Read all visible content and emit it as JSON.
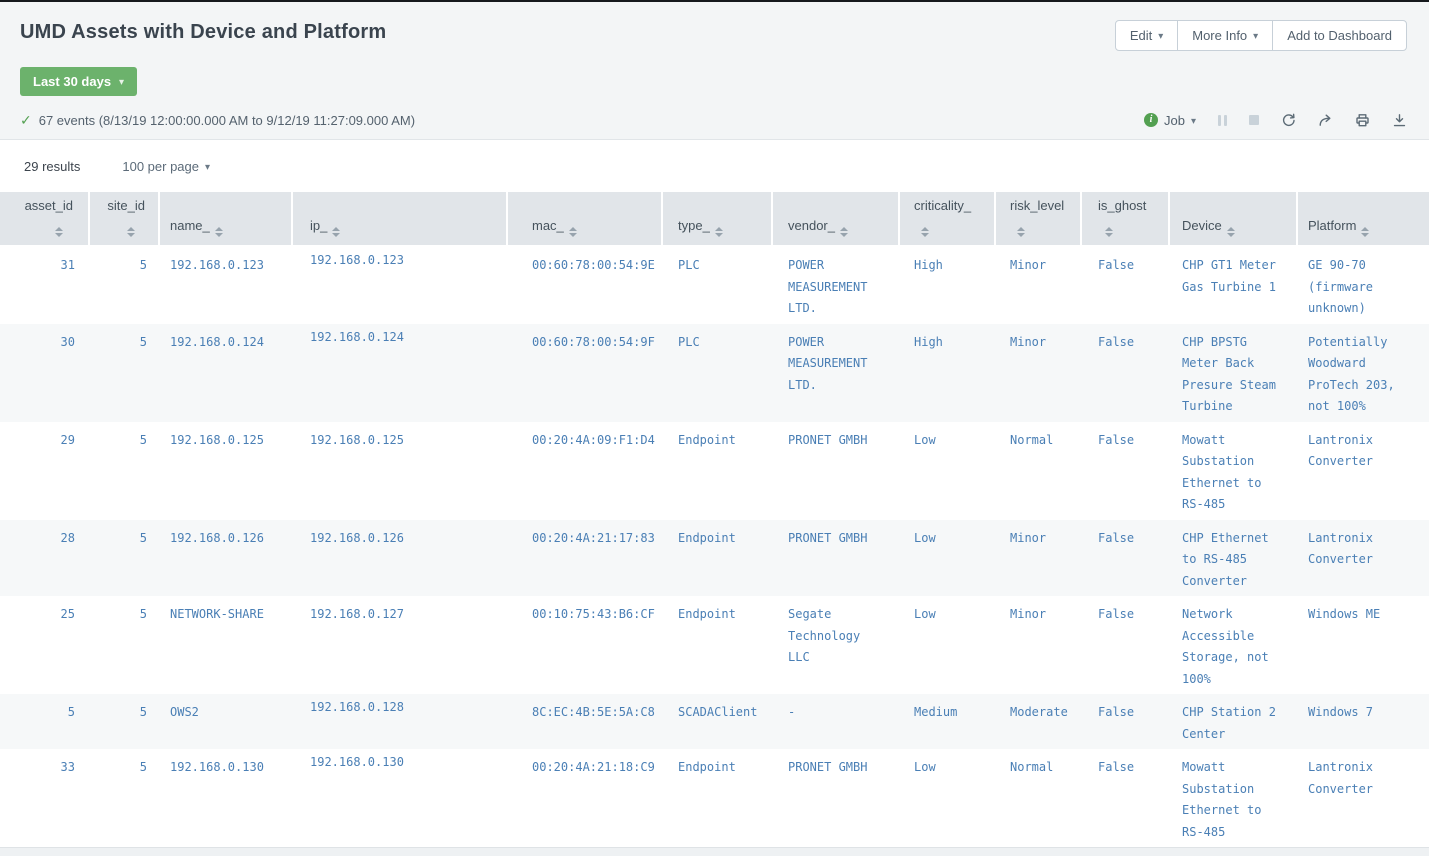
{
  "page": {
    "title": "UMD Assets with Device and Platform",
    "time_range_label": "Last 30 days",
    "events_summary": "67 events (8/13/19 12:00:00.000 AM to 9/12/19 11:27:09.000 AM)",
    "actions": {
      "edit_label": "Edit",
      "more_info_label": "More Info",
      "add_to_dashboard_label": "Add to Dashboard"
    },
    "job": {
      "label": "Job"
    }
  },
  "results_bar": {
    "count": "29 results",
    "per_page": "100 per page"
  },
  "icons": {
    "checkmark": "✓",
    "caret_down": "▾",
    "job_status_dot": "i"
  },
  "colors": {
    "time_button_green": "#6cb26c",
    "status_green": "#53a051",
    "cell_link_blue": "#4a7fb5",
    "header_cell_bg": "#e1e5e9",
    "band_bg": "#f3f5f6",
    "zebra_row_bg": "#f6f8f9"
  },
  "table": {
    "columns": [
      {
        "id": "asset_id",
        "label": "asset_id"
      },
      {
        "id": "site_id",
        "label": "site_id"
      },
      {
        "id": "name_",
        "label": "name_"
      },
      {
        "id": "ip_",
        "label": "ip_"
      },
      {
        "id": "mac_",
        "label": "mac_"
      },
      {
        "id": "type_",
        "label": "type_"
      },
      {
        "id": "vendor_",
        "label": "vendor_"
      },
      {
        "id": "criticality_",
        "label": "criticality_"
      },
      {
        "id": "risk_level",
        "label": "risk_level"
      },
      {
        "id": "is_ghost",
        "label": "is_ghost"
      },
      {
        "id": "device",
        "label": "Device"
      },
      {
        "id": "platform",
        "label": "Platform"
      }
    ],
    "rows": [
      [
        "31",
        "5",
        "192.168.0.123",
        "192.168.0.123",
        "00:60:78:00:54:9E",
        "PLC",
        "POWER MEASUREMENT LTD.",
        "High",
        "Minor",
        "False",
        "CHP GT1 Meter Gas Turbine 1",
        "GE 90-70 (firmware unknown)"
      ],
      [
        "30",
        "5",
        "192.168.0.124",
        "192.168.0.124",
        "00:60:78:00:54:9F",
        "PLC",
        "POWER MEASUREMENT LTD.",
        "High",
        "Minor",
        "False",
        "CHP BPSTG Meter Back Presure Steam Turbine",
        "Potentially Woodward ProTech 203, not 100%"
      ],
      [
        "29",
        "5",
        "192.168.0.125",
        "192.168.0.125",
        "00:20:4A:09:F1:D4",
        "Endpoint",
        "PRONET GMBH",
        "Low",
        "Normal",
        "False",
        "Mowatt Substation Ethernet to RS-485",
        "Lantronix Converter"
      ],
      [
        "28",
        "5",
        "192.168.0.126",
        "192.168.0.126",
        "00:20:4A:21:17:83",
        "Endpoint",
        "PRONET GMBH",
        "Low",
        "Minor",
        "False",
        "CHP Ethernet to RS-485 Converter",
        "Lantronix Converter"
      ],
      [
        "25",
        "5",
        "NETWORK-SHARE",
        "192.168.0.127",
        "00:10:75:43:B6:CF",
        "Endpoint",
        "Segate Technology LLC",
        "Low",
        "Minor",
        "False",
        "Network Accessible Storage, not 100%",
        "Windows ME"
      ],
      [
        "5",
        "5",
        "OWS2",
        "192.168.0.128",
        "8C:EC:4B:5E:5A:C8",
        "SCADAClient",
        "-",
        "Medium",
        "Moderate",
        "False",
        "CHP Station 2 Center",
        "Windows 7"
      ],
      [
        "33",
        "5",
        "192.168.0.130",
        "192.168.0.130",
        "00:20:4A:21:18:C9",
        "Endpoint",
        "PRONET GMBH",
        "Low",
        "Normal",
        "False",
        "Mowatt Substation Ethernet to RS-485",
        "Lantronix Converter"
      ]
    ]
  }
}
